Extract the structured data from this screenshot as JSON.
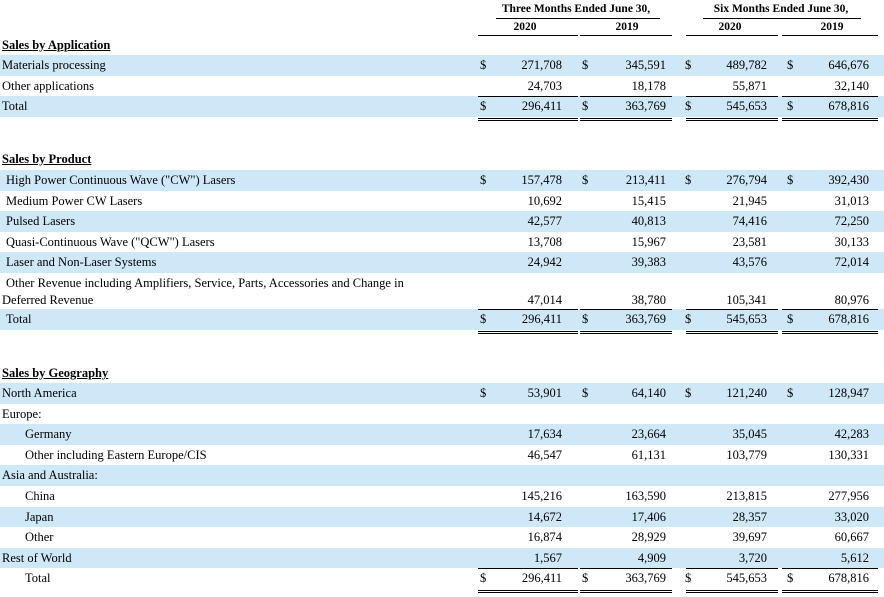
{
  "header": {
    "three_months": "Three Months Ended June 30,",
    "six_months": "Six Months Ended June 30,",
    "years": [
      "2020",
      "2019",
      "2020",
      "2019"
    ]
  },
  "currency_symbol": "$",
  "sections": [
    {
      "title": "Sales by Application",
      "rows": [
        {
          "label": "Materials processing",
          "values": [
            "271,708",
            "345,591",
            "489,782",
            "646,676"
          ],
          "dollar": true,
          "shade": true
        },
        {
          "label": "Other applications",
          "values": [
            "24,703",
            "18,178",
            "55,871",
            "32,140"
          ],
          "dollar": false,
          "shade": false
        },
        {
          "label": "Total",
          "values": [
            "296,411",
            "363,769",
            "545,653",
            "678,816"
          ],
          "dollar": true,
          "shade": true,
          "total": true
        }
      ]
    },
    {
      "title": "Sales by Product",
      "rows": [
        {
          "label": "High Power Continuous Wave (\"CW\") Lasers",
          "values": [
            "157,478",
            "213,411",
            "276,794",
            "392,430"
          ],
          "dollar": true,
          "shade": true
        },
        {
          "label": "Medium Power CW Lasers",
          "values": [
            "10,692",
            "15,415",
            "21,945",
            "31,013"
          ],
          "dollar": false,
          "shade": false
        },
        {
          "label": "Pulsed Lasers",
          "values": [
            "42,577",
            "40,813",
            "74,416",
            "72,250"
          ],
          "dollar": false,
          "shade": true
        },
        {
          "label": "Quasi-Continuous Wave (\"QCW\") Lasers",
          "values": [
            "13,708",
            "15,967",
            "23,581",
            "30,133"
          ],
          "dollar": false,
          "shade": false
        },
        {
          "label": "Laser and Non-Laser Systems",
          "values": [
            "24,942",
            "39,383",
            "43,576",
            "72,014"
          ],
          "dollar": false,
          "shade": true
        },
        {
          "label_line1": "Other Revenue including Amplifiers, Service, Parts, Accessories and Change in",
          "label": "Deferred Revenue",
          "values": [
            "47,014",
            "38,780",
            "105,341",
            "80,976"
          ],
          "dollar": false,
          "shade": false,
          "tall": true
        },
        {
          "label": "Total",
          "values": [
            "296,411",
            "363,769",
            "545,653",
            "678,816"
          ],
          "dollar": true,
          "shade": true,
          "total": true
        }
      ]
    },
    {
      "title": "Sales by Geography",
      "rows": [
        {
          "label": "North America",
          "values": [
            "53,901",
            "64,140",
            "121,240",
            "128,947"
          ],
          "dollar": true,
          "shade": true
        },
        {
          "label": "Europe:",
          "values": [
            "",
            "",
            "",
            ""
          ],
          "dollar": false,
          "shade": false
        },
        {
          "label": "Germany",
          "values": [
            "17,634",
            "23,664",
            "35,045",
            "42,283"
          ],
          "dollar": false,
          "shade": true,
          "indent": true
        },
        {
          "label": "Other including Eastern Europe/CIS",
          "values": [
            "46,547",
            "61,131",
            "103,779",
            "130,331"
          ],
          "dollar": false,
          "shade": false,
          "indent": true
        },
        {
          "label": "Asia and Australia:",
          "values": [
            "",
            "",
            "",
            ""
          ],
          "dollar": false,
          "shade": true
        },
        {
          "label": "China",
          "values": [
            "145,216",
            "163,590",
            "213,815",
            "277,956"
          ],
          "dollar": false,
          "shade": false,
          "indent": true
        },
        {
          "label": "Japan",
          "values": [
            "14,672",
            "17,406",
            "28,357",
            "33,020"
          ],
          "dollar": false,
          "shade": true,
          "indent": true
        },
        {
          "label": "Other",
          "values": [
            "16,874",
            "28,929",
            "39,697",
            "60,667"
          ],
          "dollar": false,
          "shade": false,
          "indent": true
        },
        {
          "label": "Rest of World",
          "values": [
            "1,567",
            "4,909",
            "3,720",
            "5,612"
          ],
          "dollar": false,
          "shade": true
        },
        {
          "label": "Total",
          "values": [
            "296,411",
            "363,769",
            "545,653",
            "678,816"
          ],
          "dollar": true,
          "shade": false,
          "total": true,
          "indent": true
        }
      ]
    }
  ]
}
